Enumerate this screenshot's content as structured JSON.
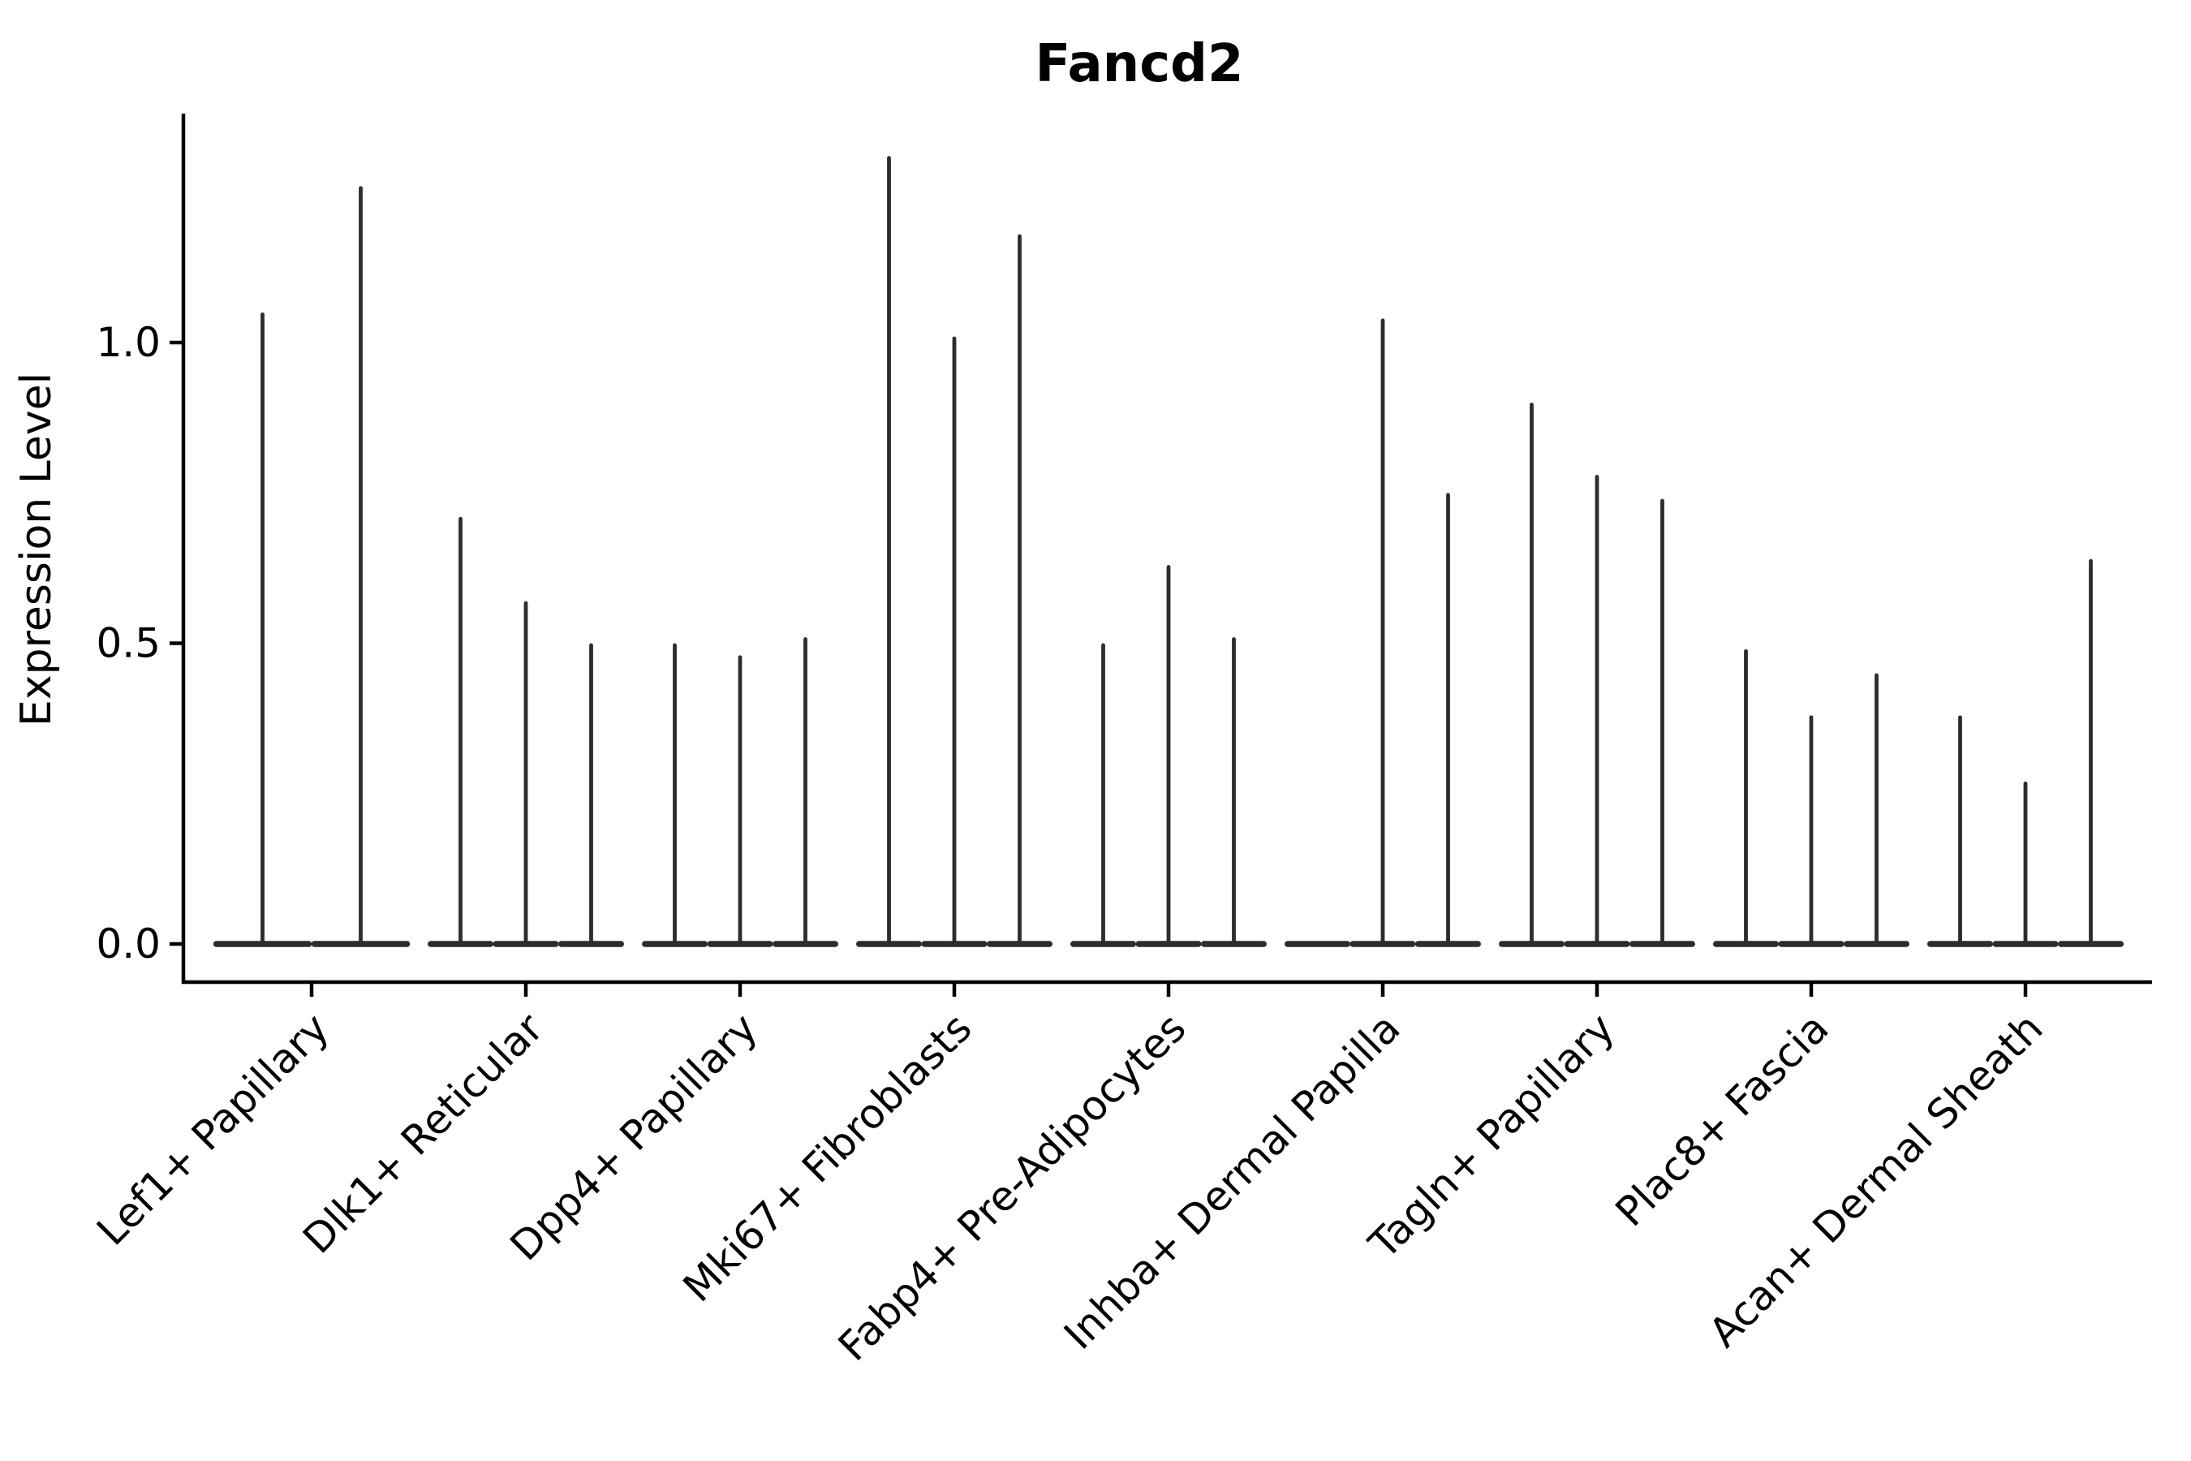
{
  "chart_data": {
    "type": "violin",
    "title": "Fancd2",
    "ylabel": "Expression Level",
    "xlabel": "",
    "yticks": [
      0.0,
      0.5,
      1.0
    ],
    "ylim": [
      -0.065,
      1.38
    ],
    "grid": false,
    "legend": false,
    "violin_color": "#2d2d2d",
    "axis_color": "#000000",
    "categories": [
      "Lef1+ Papillary",
      "Dlk1+ Reticular",
      "Dpp4+ Papillary",
      "Mki67+ Fibroblasts",
      "Fabp4+ Pre-Adipocytes",
      "Inhba+ Dermal Papilla",
      "Tagln+ Papillary",
      "Plac8+ Fascia",
      "Acan+ Dermal Sheath"
    ],
    "groups": [
      {
        "category": "Lef1+ Papillary",
        "violin_max_expression": [
          1.05,
          1.26
        ]
      },
      {
        "category": "Dlk1+ Reticular",
        "violin_max_expression": [
          0.71,
          0.57,
          0.5
        ]
      },
      {
        "category": "Dpp4+ Papillary",
        "violin_max_expression": [
          0.5,
          0.48,
          0.51
        ]
      },
      {
        "category": "Mki67+ Fibroblasts",
        "violin_max_expression": [
          1.31,
          1.01,
          1.18
        ]
      },
      {
        "category": "Fabp4+ Pre-Adipocytes",
        "violin_max_expression": [
          0.5,
          0.63,
          0.51
        ]
      },
      {
        "category": "Inhba+ Dermal Papilla",
        "violin_max_expression": [
          0.0,
          1.04,
          0.75
        ]
      },
      {
        "category": "Tagln+ Papillary",
        "violin_max_expression": [
          0.9,
          0.78,
          0.74
        ]
      },
      {
        "category": "Plac8+ Fascia",
        "violin_max_expression": [
          0.49,
          0.38,
          0.45
        ]
      },
      {
        "category": "Acan+ Dermal Sheath",
        "violin_max_expression": [
          0.38,
          0.27,
          0.64
        ]
      }
    ]
  }
}
